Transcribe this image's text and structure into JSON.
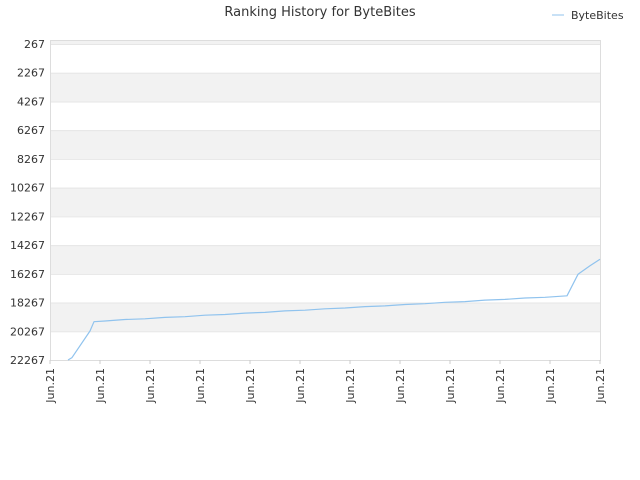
{
  "chart_data": {
    "type": "line",
    "title": "Ranking History for ByteBites",
    "xlabel": "",
    "ylabel": "",
    "y_inverted": true,
    "ylim": [
      267,
      22267
    ],
    "y_ticks": [
      "267",
      "2267",
      "4267",
      "6267",
      "8267",
      "10267",
      "12267",
      "14267",
      "16267",
      "18267",
      "20267",
      "22267"
    ],
    "x_ticks": [
      "Jun.21",
      "Jun.21",
      "Jun.21",
      "Jun.21",
      "Jun.21",
      "Jun.21",
      "Jun.21",
      "Jun.21",
      "Jun.21",
      "Jun.21",
      "Jun.21",
      "Jun.21"
    ],
    "xlim": [
      0,
      55
    ],
    "grid": true,
    "legend": "top-right",
    "series_color": "#90c3ee",
    "band_color": "#f2f2f2",
    "series": [
      {
        "name": "ByteBites",
        "x": [
          1.8,
          2.2,
          4.0,
          4.4,
          5.5,
          7.5,
          9.5,
          11.5,
          13.5,
          15.5,
          17.5,
          19.5,
          21.5,
          23.5,
          25.5,
          27.5,
          29.5,
          31.5,
          33.5,
          35.5,
          37.5,
          39.5,
          41.5,
          43.5,
          45.5,
          47.5,
          49.5,
          51.7,
          52.8,
          54.0,
          55.0
        ],
        "y": [
          22267,
          22100,
          20250,
          19600,
          19550,
          19450,
          19400,
          19300,
          19250,
          19150,
          19100,
          19000,
          18950,
          18850,
          18800,
          18700,
          18650,
          18550,
          18500,
          18400,
          18350,
          18250,
          18200,
          18100,
          18050,
          17950,
          17900,
          17800,
          16300,
          15700,
          15250
        ]
      }
    ]
  }
}
